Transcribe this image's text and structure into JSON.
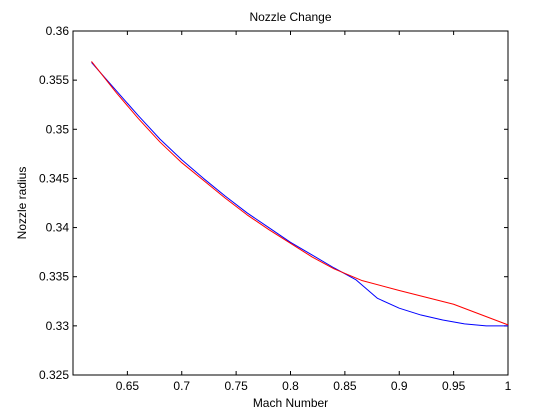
{
  "chart_data": {
    "type": "line",
    "title": "Nozzle Change",
    "xlabel": "Mach Number",
    "ylabel": "Nozzle radius",
    "xlim": [
      0.6,
      1.0
    ],
    "ylim": [
      0.325,
      0.36
    ],
    "x_ticks": [
      "0.65",
      "0.7",
      "0.75",
      "0.8",
      "0.85",
      "0.9",
      "0.95",
      "1"
    ],
    "y_ticks": [
      "0.325",
      "0.33",
      "0.335",
      "0.34",
      "0.345",
      "0.35",
      "0.355",
      "0.36"
    ],
    "grid": false,
    "legend": "none",
    "series": [
      {
        "color": "#0000ff",
        "x": [
          0.617,
          0.64,
          0.66,
          0.68,
          0.7,
          0.72,
          0.74,
          0.76,
          0.78,
          0.8,
          0.82,
          0.84,
          0.86,
          0.88,
          0.9,
          0.92,
          0.94,
          0.96,
          0.98,
          1.0
        ],
        "y": [
          0.3568,
          0.3539,
          0.3514,
          0.349,
          0.3469,
          0.345,
          0.3432,
          0.3415,
          0.34,
          0.3385,
          0.3372,
          0.3359,
          0.3347,
          0.3328,
          0.3318,
          0.3311,
          0.3306,
          0.3302,
          0.33,
          0.33
        ]
      },
      {
        "color": "#ff0000",
        "x": [
          0.617,
          0.64,
          0.66,
          0.68,
          0.7,
          0.72,
          0.74,
          0.76,
          0.78,
          0.8,
          0.82,
          0.84,
          0.866,
          0.9,
          0.95,
          1.0
        ],
        "y": [
          0.3569,
          0.3537,
          0.3511,
          0.3487,
          0.3466,
          0.3448,
          0.343,
          0.3413,
          0.3398,
          0.3384,
          0.337,
          0.3358,
          0.3346,
          0.3336,
          0.3322,
          0.3301
        ]
      }
    ]
  }
}
